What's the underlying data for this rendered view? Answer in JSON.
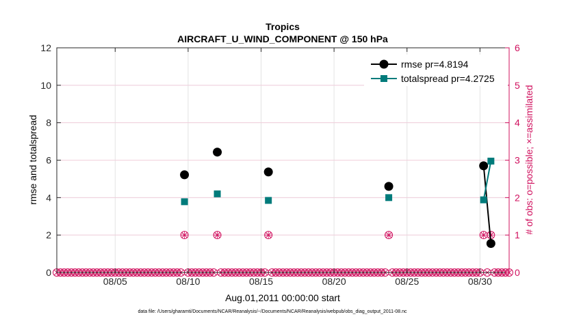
{
  "chart_data": {
    "type": "line",
    "title": "Tropics",
    "subtitle": "AIRCRAFT_U_WIND_COMPONENT @ 150 hPa",
    "xlabel": "Aug.01,2011 00:00:00 start",
    "ylabel": "rmse and totalspread",
    "y2label": "# of obs: o=possible; ×=assimilated",
    "footnote": "data file: /Users/gharamti/Documents/NCAR/Reanalysis/~/Documents/NCAR/Reanalysis/webpub/obs_diag_output_2011-08.nc",
    "xlim": [
      1,
      32
    ],
    "ylim": [
      0,
      12
    ],
    "y2lim": [
      0,
      6
    ],
    "x_ticks": [
      5,
      10,
      15,
      20,
      25,
      30
    ],
    "x_tick_labels": [
      "08/05",
      "08/10",
      "08/15",
      "08/20",
      "08/25",
      "08/30"
    ],
    "y_ticks": [
      0,
      2,
      4,
      6,
      8,
      10,
      12
    ],
    "y_tick_labels": [
      "0",
      "2",
      "4",
      "6",
      "8",
      "10",
      "12"
    ],
    "y2_ticks": [
      0,
      1,
      2,
      3,
      4,
      5,
      6
    ],
    "y2_tick_labels": [
      "0",
      "1",
      "2",
      "3",
      "4",
      "5",
      "6"
    ],
    "grid": true,
    "legend_position": "top-right",
    "series": [
      {
        "name": "rmse pr=4.8194",
        "color": "#000000",
        "marker": "circle",
        "points": [
          [
            9.75,
            5.22
          ],
          [
            12.0,
            6.43
          ],
          [
            15.5,
            5.37
          ],
          [
            23.75,
            4.6
          ],
          [
            30.25,
            5.7
          ],
          [
            30.75,
            1.55
          ]
        ],
        "connected": [
          [
            4,
            5
          ]
        ]
      },
      {
        "name": "totalspread pr=4.2725",
        "color": "#007b7b",
        "marker": "square",
        "points": [
          [
            9.75,
            3.78
          ],
          [
            12.0,
            4.2
          ],
          [
            15.5,
            3.85
          ],
          [
            23.75,
            4.0
          ],
          [
            30.25,
            3.88
          ],
          [
            30.75,
            5.95
          ]
        ],
        "connected": [
          [
            4,
            5
          ]
        ]
      }
    ],
    "obs_color": "#d0105e",
    "obs_possible": {
      "x_start": 1.0,
      "x_step": 0.25,
      "x_end": 32.0,
      "nonzero": [
        [
          9.75,
          1
        ],
        [
          12.0,
          1
        ],
        [
          15.5,
          1
        ],
        [
          23.75,
          1
        ],
        [
          30.25,
          1
        ],
        [
          30.75,
          1
        ]
      ]
    },
    "obs_assimilated": {
      "nonzero": [
        [
          9.75,
          1
        ],
        [
          12.0,
          1
        ],
        [
          15.5,
          1
        ],
        [
          23.75,
          1
        ],
        [
          30.25,
          1
        ],
        [
          30.75,
          1
        ]
      ]
    }
  }
}
